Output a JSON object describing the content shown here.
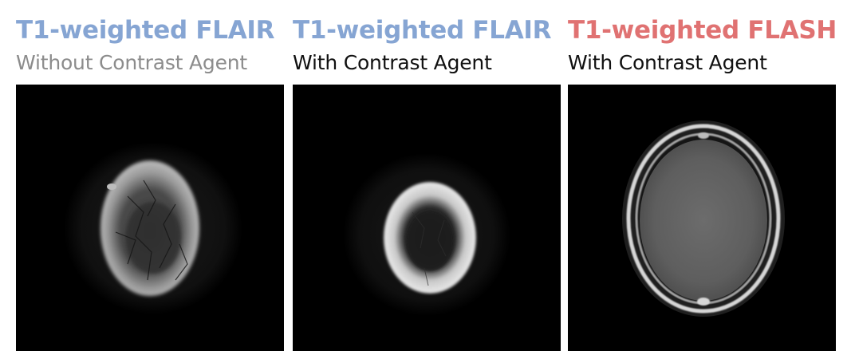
{
  "panels": [
    {
      "title": "T1-weighted FLAIR",
      "subtitle": "Without Contrast Agent",
      "title_color": "#86a5d3",
      "subtitle_color": "#8c8c8c"
    },
    {
      "title": "T1-weighted FLAIR",
      "subtitle": "With Contrast Agent",
      "title_color": "#86a5d3",
      "subtitle_color": "#111111"
    },
    {
      "title": "T1-weighted FLASH",
      "subtitle": "With Contrast Agent",
      "title_color": "#e07272",
      "subtitle_color": "#111111"
    }
  ]
}
